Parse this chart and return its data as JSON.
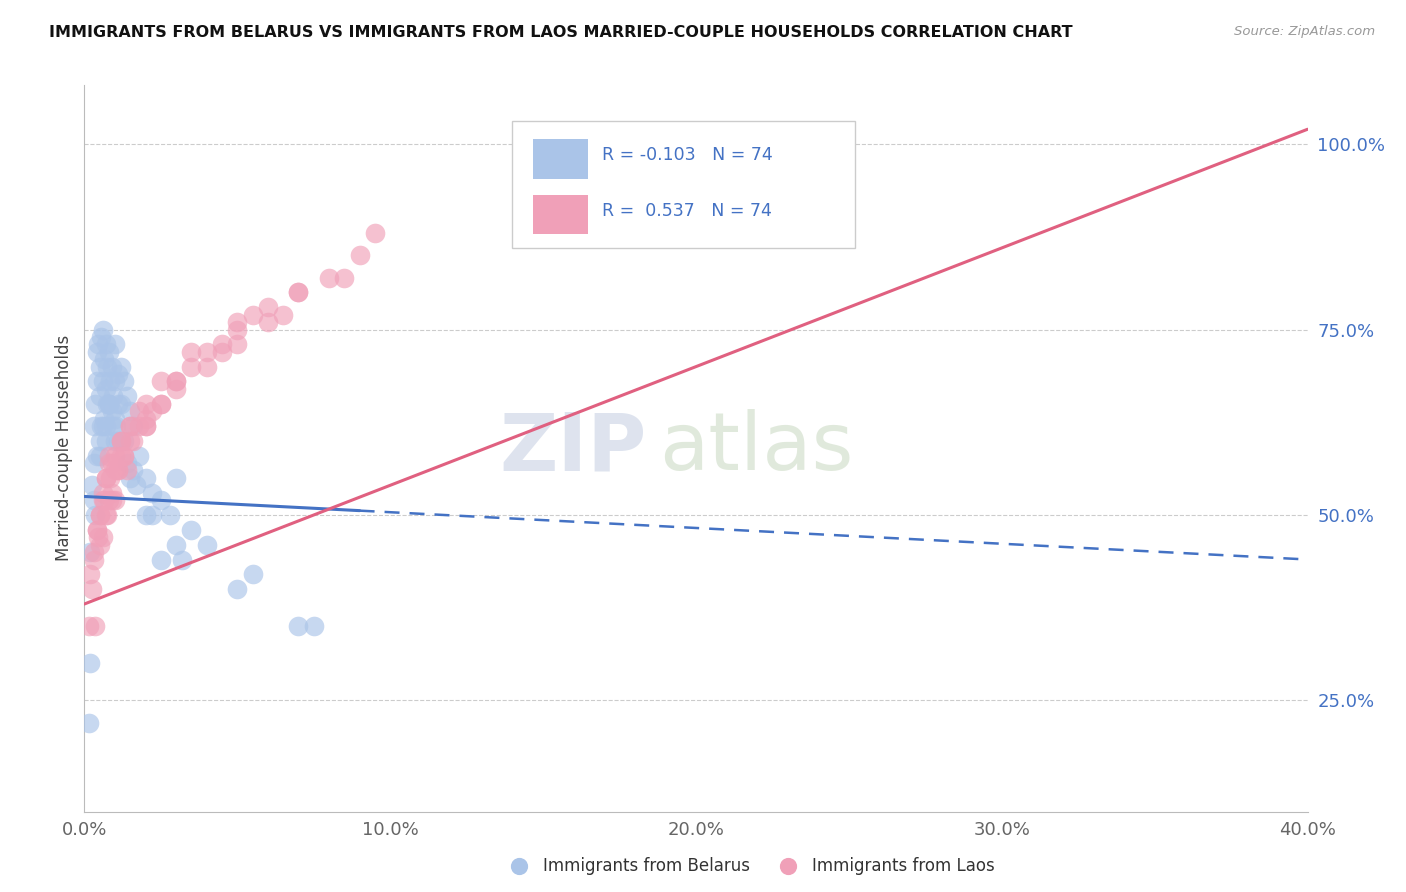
{
  "title": "IMMIGRANTS FROM BELARUS VS IMMIGRANTS FROM LAOS MARRIED-COUPLE HOUSEHOLDS CORRELATION CHART",
  "source": "Source: ZipAtlas.com",
  "ylabel": "Married-couple Households",
  "xlim": [
    0.0,
    40.0
  ],
  "ylim": [
    10.0,
    108.0
  ],
  "yticks": [
    25.0,
    50.0,
    75.0,
    100.0
  ],
  "xticks": [
    0.0,
    10.0,
    20.0,
    30.0,
    40.0
  ],
  "xtick_labels": [
    "0.0%",
    "10.0%",
    "20.0%",
    "30.0%",
    "40.0%"
  ],
  "ytick_labels": [
    "25.0%",
    "50.0%",
    "75.0%",
    "100.0%"
  ],
  "legend_R_belarus": "-0.103",
  "legend_N_belarus": "74",
  "legend_R_laos": "0.537",
  "legend_N_laos": "74",
  "watermark_zip": "ZIP",
  "watermark_atlas": "atlas",
  "color_belarus": "#aac4e8",
  "color_laos": "#f0a0b8",
  "line_color_belarus": "#4472c4",
  "line_color_laos": "#e06080",
  "background_color": "#ffffff",
  "grid_color": "#cccccc",
  "belarus_line_x0": 0.0,
  "belarus_line_y0": 52.5,
  "belarus_line_x1": 40.0,
  "belarus_line_y1": 44.0,
  "laos_line_x0": 0.0,
  "laos_line_y0": 38.0,
  "laos_line_x1": 40.0,
  "laos_line_y1": 102.0,
  "belarus_solid_end": 9.0,
  "belarus_x": [
    0.15,
    0.2,
    0.25,
    0.3,
    0.3,
    0.35,
    0.4,
    0.4,
    0.45,
    0.5,
    0.5,
    0.5,
    0.55,
    0.6,
    0.6,
    0.6,
    0.65,
    0.7,
    0.7,
    0.7,
    0.75,
    0.8,
    0.8,
    0.85,
    0.9,
    0.9,
    0.95,
    1.0,
    1.0,
    1.0,
    1.1,
    1.1,
    1.2,
    1.2,
    1.3,
    1.4,
    1.5,
    1.6,
    1.8,
    2.0,
    2.2,
    2.5,
    2.8,
    3.0,
    3.5,
    4.0,
    5.5,
    7.0,
    0.2,
    0.35,
    0.5,
    0.65,
    0.8,
    0.95,
    1.1,
    1.4,
    1.7,
    2.5,
    0.3,
    0.55,
    0.75,
    1.05,
    1.3,
    1.6,
    2.2,
    3.2,
    0.4,
    0.7,
    1.0,
    1.5,
    2.0,
    3.0,
    5.0,
    7.5
  ],
  "belarus_y": [
    22,
    45,
    54,
    57,
    62,
    65,
    68,
    72,
    73,
    70,
    66,
    60,
    74,
    75,
    68,
    62,
    71,
    73,
    67,
    62,
    70,
    72,
    65,
    68,
    70,
    64,
    66,
    73,
    68,
    63,
    69,
    65,
    70,
    65,
    68,
    66,
    64,
    62,
    58,
    55,
    53,
    52,
    50,
    55,
    48,
    46,
    42,
    35,
    30,
    50,
    58,
    63,
    65,
    62,
    60,
    57,
    54,
    44,
    52,
    62,
    65,
    62,
    60,
    56,
    50,
    44,
    58,
    60,
    60,
    55,
    50,
    46,
    40,
    35
  ],
  "laos_x": [
    0.15,
    0.2,
    0.3,
    0.4,
    0.5,
    0.5,
    0.6,
    0.6,
    0.7,
    0.7,
    0.8,
    0.8,
    0.9,
    0.9,
    1.0,
    1.0,
    1.1,
    1.2,
    1.3,
    1.4,
    1.5,
    1.6,
    1.8,
    2.0,
    2.2,
    2.5,
    3.0,
    3.5,
    4.0,
    4.5,
    5.0,
    5.5,
    6.0,
    7.0,
    8.0,
    9.5,
    0.3,
    0.5,
    0.7,
    0.9,
    1.1,
    1.3,
    1.5,
    2.0,
    2.5,
    3.0,
    4.0,
    5.0,
    6.5,
    0.4,
    0.6,
    0.8,
    1.0,
    1.5,
    2.0,
    3.0,
    4.5,
    6.0,
    8.5,
    0.25,
    0.45,
    0.65,
    0.85,
    1.2,
    1.8,
    2.5,
    3.5,
    5.0,
    7.0,
    9.0,
    0.35,
    0.75,
    1.2,
    2.0
  ],
  "laos_y": [
    35,
    42,
    45,
    48,
    50,
    46,
    52,
    47,
    55,
    50,
    58,
    52,
    57,
    53,
    58,
    52,
    56,
    60,
    58,
    56,
    62,
    60,
    62,
    62,
    64,
    65,
    68,
    70,
    72,
    73,
    75,
    77,
    78,
    80,
    82,
    88,
    44,
    50,
    55,
    52,
    56,
    58,
    60,
    63,
    65,
    67,
    70,
    73,
    77,
    48,
    53,
    57,
    56,
    62,
    65,
    68,
    72,
    76,
    82,
    40,
    47,
    52,
    55,
    60,
    64,
    68,
    72,
    76,
    80,
    85,
    35,
    50,
    58,
    62
  ]
}
